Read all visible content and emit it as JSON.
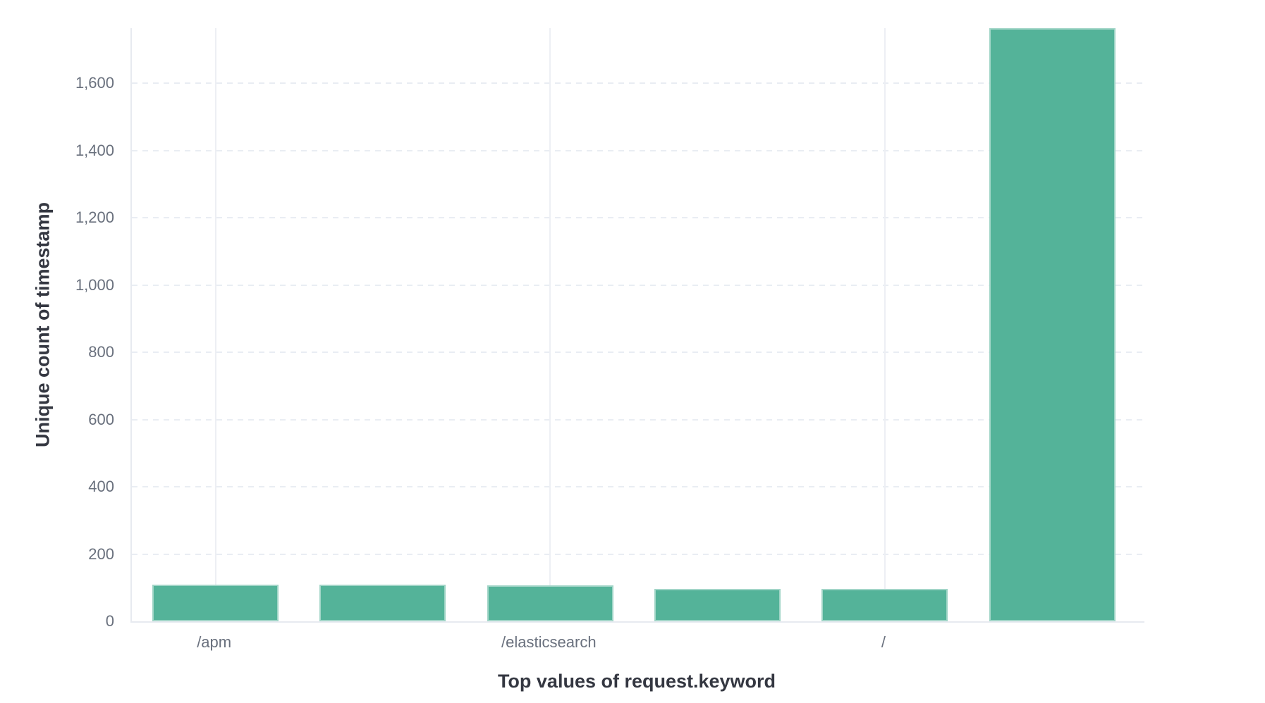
{
  "chart_data": {
    "type": "bar",
    "title": "",
    "xlabel": "Top values of request.keyword",
    "ylabel": "Unique count of timestamp",
    "categories": [
      "/apm",
      "",
      "/elasticsearch",
      "",
      "/",
      ""
    ],
    "x_tick_labels": [
      {
        "label": "/apm",
        "category_index": 0
      },
      {
        "label": "/elasticsearch",
        "category_index": 2
      },
      {
        "label": "/",
        "category_index": 4
      }
    ],
    "values": [
      109,
      109,
      107,
      97,
      96,
      1764
    ],
    "ylim": [
      0,
      1764
    ],
    "y_ticks": [
      {
        "value": 0,
        "label": "0"
      },
      {
        "value": 200,
        "label": "200"
      },
      {
        "value": 400,
        "label": "400"
      },
      {
        "value": 600,
        "label": "600"
      },
      {
        "value": 800,
        "label": "800"
      },
      {
        "value": 1000,
        "label": "1,000"
      },
      {
        "value": 1200,
        "label": "1,200"
      },
      {
        "value": 1400,
        "label": "1,400"
      },
      {
        "value": 1600,
        "label": "1,600"
      }
    ],
    "grid": {
      "horizontal": "dashed",
      "vertical": "solid-at-labeled-categories"
    },
    "legend_position": "none",
    "colors": {
      "bar": "#54B399",
      "axis_title_text": "#343741",
      "tick_label_text": "#69707D",
      "axis_line": "#E7EAF0",
      "h_gridline": "#E9EDF3",
      "v_gridline": "#EDEFF4",
      "background": "#FFFFFF"
    }
  }
}
